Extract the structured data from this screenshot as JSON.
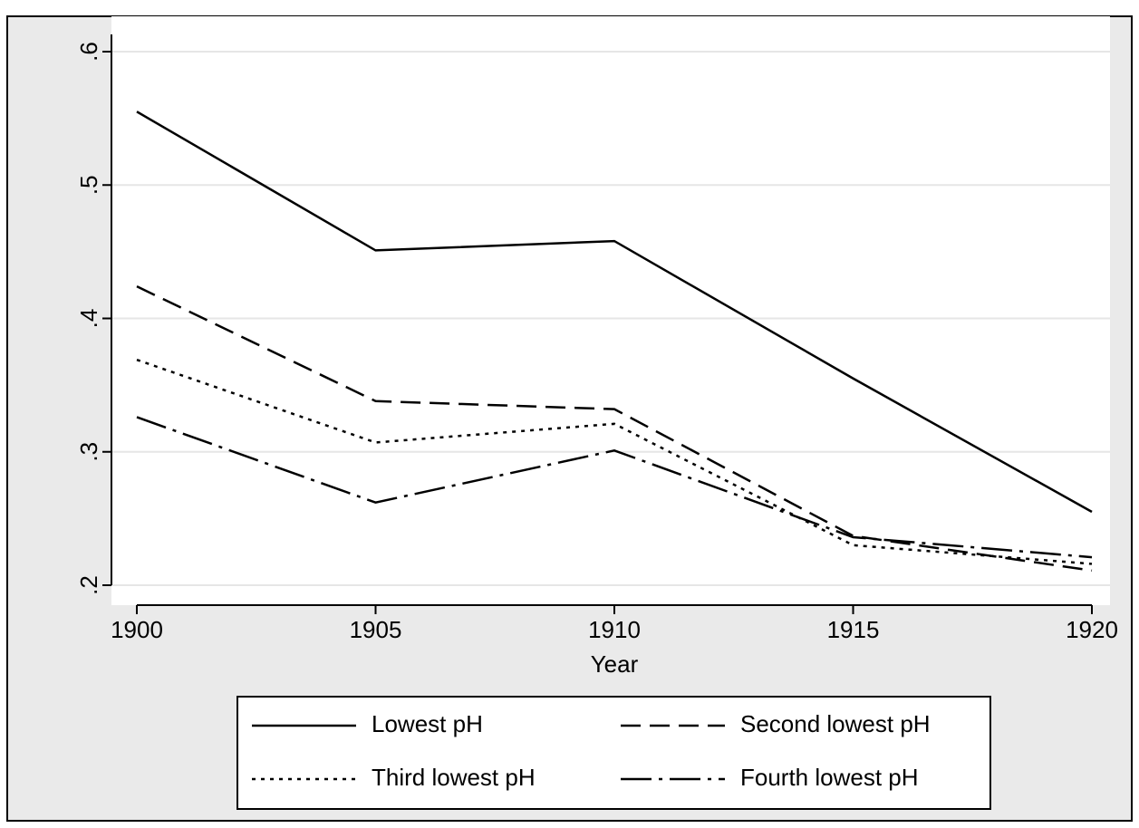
{
  "chart_data": {
    "type": "line",
    "x_label": "Year",
    "x": [
      1900,
      1905,
      1910,
      1915,
      1920
    ],
    "xlim": [
      1900,
      1920
    ],
    "xticks": [
      1900,
      1905,
      1910,
      1915,
      1920
    ],
    "ylim": [
      0.2,
      0.6
    ],
    "yticks": [
      {
        "value": 0.2,
        "label": ".2"
      },
      {
        "value": 0.3,
        "label": ".3"
      },
      {
        "value": 0.4,
        "label": ".4"
      },
      {
        "value": 0.5,
        "label": ".5"
      },
      {
        "value": 0.6,
        "label": ".6"
      }
    ],
    "grid": true,
    "legend": "bottom",
    "series": [
      {
        "name": "Lowest pH",
        "color": "#000000",
        "style": "solid",
        "values": [
          0.555,
          0.451,
          0.458,
          0.355,
          0.255
        ]
      },
      {
        "name": "Second lowest pH",
        "color": "#000000",
        "style": "dash",
        "values": [
          0.424,
          0.338,
          0.332,
          0.237,
          0.211
        ]
      },
      {
        "name": "Third lowest pH",
        "color": "#000000",
        "style": "dot",
        "values": [
          0.369,
          0.307,
          0.321,
          0.23,
          0.216
        ]
      },
      {
        "name": "Fourth lowest pH",
        "color": "#000000",
        "style": "dashdot",
        "values": [
          0.326,
          0.262,
          0.301,
          0.236,
          0.221
        ]
      }
    ]
  }
}
